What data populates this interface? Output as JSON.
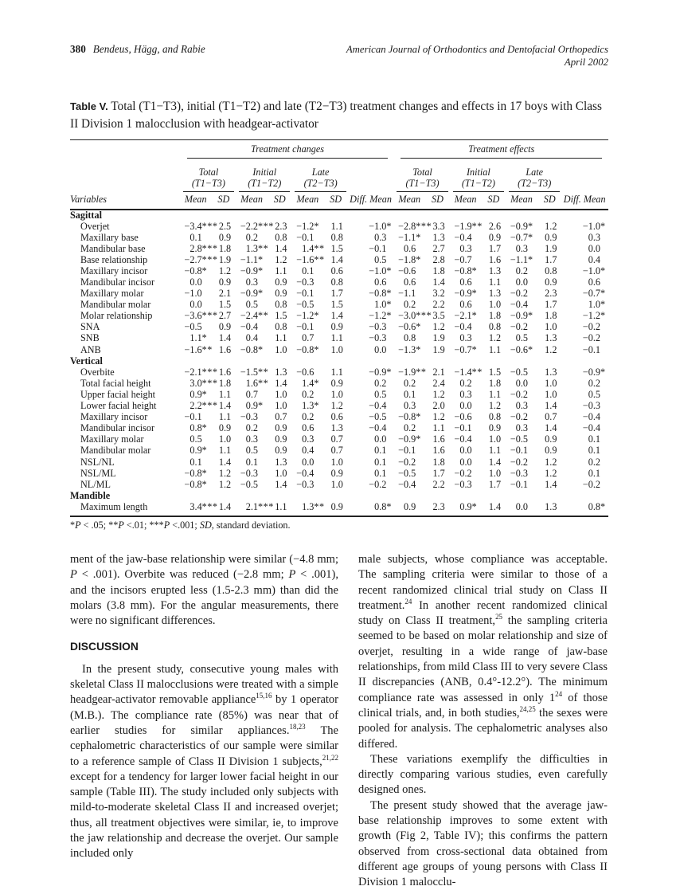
{
  "page": {
    "number": "380",
    "authors": "Bendeus, Hägg, and Rabie",
    "journal_line1": "American Journal of Orthodontics and Dentofacial Orthopedics",
    "journal_line2": "April 2002"
  },
  "table": {
    "label": "Table V.",
    "caption": "Total (T1−T3), initial (T1−T2) and late (T2−T3) treatment changes and effects in 17 boys with Class II Division 1 malocclusion with headgear-activator",
    "groups": {
      "changes": "Treatment changes",
      "effects": "Treatment effects"
    },
    "periods": [
      {
        "line1": "Total",
        "line2": "(T1−T3)"
      },
      {
        "line1": "Initial",
        "line2": "(T1−T2)"
      },
      {
        "line1": "Late",
        "line2": "(T2−T3)"
      }
    ],
    "col_headers": {
      "variables": "Variables",
      "mean": "Mean",
      "sd": "SD",
      "diff": "Diff. Mean"
    },
    "footnote": "*~{P} < .05; **~{P} <.01; ***~{P} <.001; ~{SD}, standard deviation.",
    "sections": [
      {
        "name": "Sagittal",
        "rows": [
          {
            "label": "Overjet",
            "values": [
              "−3.4***",
              "2.5",
              "−2.2***",
              "2.3",
              "−1.2*",
              "1.1",
              "−1.0*",
              "−2.8***",
              "3.3",
              "−1.9**",
              "2.6",
              "−0.9*",
              "1.2",
              "−1.0*"
            ]
          },
          {
            "label": "Maxillary base",
            "values": [
              "0.1",
              "0.9",
              "0.2",
              "0.8",
              "−0.1",
              "0.8",
              "0.3",
              "−1.1*",
              "1.3",
              "−0.4",
              "0.9",
              "−0.7*",
              "0.9",
              "0.3"
            ]
          },
          {
            "label": "Mandibular base",
            "values": [
              "2.8***",
              "1.8",
              "1.3**",
              "1.4",
              "1.4**",
              "1.5",
              "−0.1",
              "0.6",
              "2.7",
              "0.3",
              "1.7",
              "0.3",
              "1.9",
              "0.0"
            ]
          },
          {
            "label": "Base relationship",
            "values": [
              "−2.7***",
              "1.9",
              "−1.1*",
              "1.2",
              "−1.6**",
              "1.4",
              "0.5",
              "−1.8*",
              "2.8",
              "−0.7",
              "1.6",
              "−1.1*",
              "1.7",
              "0.4"
            ]
          },
          {
            "label": "Maxillary incisor",
            "values": [
              "−0.8*",
              "1.2",
              "−0.9*",
              "1.1",
              "0.1",
              "0.6",
              "−1.0*",
              "−0.6",
              "1.8",
              "−0.8*",
              "1.3",
              "0.2",
              "0.8",
              "−1.0*"
            ]
          },
          {
            "label": "Mandibular incisor",
            "values": [
              "0.0",
              "0.9",
              "0.3",
              "0.9",
              "−0.3",
              "0.8",
              "0.6",
              "0.6",
              "1.4",
              "0.6",
              "1.1",
              "0.0",
              "0.9",
              "0.6"
            ]
          },
          {
            "label": "Maxillary molar",
            "values": [
              "−1.0",
              "2.1",
              "−0.9*",
              "0.9",
              "−0.1",
              "1.7",
              "−0.8*",
              "−1.1",
              "3.2",
              "−0.9*",
              "1.3",
              "−0.2",
              "2.3",
              "−0.7*"
            ]
          },
          {
            "label": "Mandibular molar",
            "values": [
              "0.0",
              "1.5",
              "0.5",
              "0.8",
              "−0.5",
              "1.5",
              "1.0*",
              "0.2",
              "2.2",
              "0.6",
              "1.0",
              "−0.4",
              "1.7",
              "1.0*"
            ]
          },
          {
            "label": "Molar relationship",
            "values": [
              "−3.6***",
              "2.7",
              "−2.4**",
              "1.5",
              "−1.2*",
              "1.4",
              "−1.2*",
              "−3.0***",
              "3.5",
              "−2.1*",
              "1.8",
              "−0.9*",
              "1.8",
              "−1.2*"
            ]
          },
          {
            "label": "SNA",
            "values": [
              "−0.5",
              "0.9",
              "−0.4",
              "0.8",
              "−0.1",
              "0.9",
              "−0.3",
              "−0.6*",
              "1.2",
              "−0.4",
              "0.8",
              "−0.2",
              "1.0",
              "−0.2"
            ]
          },
          {
            "label": "SNB",
            "values": [
              "1.1*",
              "1.4",
              "0.4",
              "1.1",
              "0.7",
              "1.1",
              "−0.3",
              "0.8",
              "1.9",
              "0.3",
              "1.2",
              "0.5",
              "1.3",
              "−0.2"
            ]
          },
          {
            "label": "ANB",
            "values": [
              "−1.6**",
              "1.6",
              "−0.8*",
              "1.0",
              "−0.8*",
              "1.0",
              "0.0",
              "−1.3*",
              "1.9",
              "−0.7*",
              "1.1",
              "−0.6*",
              "1.2",
              "−0.1"
            ]
          }
        ]
      },
      {
        "name": "Vertical",
        "rows": [
          {
            "label": "Overbite",
            "values": [
              "−2.1***",
              "1.6",
              "−1.5**",
              "1.3",
              "−0.6",
              "1.1",
              "−0.9*",
              "−1.9**",
              "2.1",
              "−1.4**",
              "1.5",
              "−0.5",
              "1.3",
              "−0.9*"
            ]
          },
          {
            "label": "Total facial height",
            "values": [
              "3.0***",
              "1.8",
              "1.6**",
              "1.4",
              "1.4*",
              "0.9",
              "0.2",
              "0.2",
              "2.4",
              "0.2",
              "1.8",
              "0.0",
              "1.0",
              "0.2"
            ]
          },
          {
            "label": "Upper facial height",
            "values": [
              "0.9*",
              "1.1",
              "0.7",
              "1.0",
              "0.2",
              "1.0",
              "0.5",
              "0.1",
              "1.2",
              "0.3",
              "1.1",
              "−0.2",
              "1.0",
              "0.5"
            ]
          },
          {
            "label": "Lower facial height",
            "values": [
              "2.2***",
              "1.4",
              "0.9*",
              "1.0",
              "1.3*",
              "1.2",
              "−0.4",
              "0.3",
              "2.0",
              "0.0",
              "1.2",
              "0.3",
              "1.4",
              "−0.3"
            ]
          },
          {
            "label": "Maxillary incisor",
            "values": [
              "−0.1",
              "1.1",
              "−0.3",
              "0.7",
              "0.2",
              "0.6",
              "−0.5",
              "−0.8*",
              "1.2",
              "−0.6",
              "0.8",
              "−0.2",
              "0.7",
              "−0.4"
            ]
          },
          {
            "label": "Mandibular incisor",
            "values": [
              "0.8*",
              "0.9",
              "0.2",
              "0.9",
              "0.6",
              "1.3",
              "−0.4",
              "0.2",
              "1.1",
              "−0.1",
              "0.9",
              "0.3",
              "1.4",
              "−0.4"
            ]
          },
          {
            "label": "Maxillary molar",
            "values": [
              "0.5",
              "1.0",
              "0.3",
              "0.9",
              "0.3",
              "0.7",
              "0.0",
              "−0.9*",
              "1.6",
              "−0.4",
              "1.0",
              "−0.5",
              "0.9",
              "0.1"
            ]
          },
          {
            "label": "Mandibular molar",
            "values": [
              "0.9*",
              "1.1",
              "0.5",
              "0.9",
              "0.4",
              "0.7",
              "0.1",
              "−0.1",
              "1.6",
              "0.0",
              "1.1",
              "−0.1",
              "0.9",
              "0.1"
            ]
          },
          {
            "label": "NSL/NL",
            "values": [
              "0.1",
              "1.4",
              "0.1",
              "1.3",
              "0.0",
              "1.0",
              "0.1",
              "−0.2",
              "1.8",
              "0.0",
              "1.4",
              "−0.2",
              "1.2",
              "0.2"
            ]
          },
          {
            "label": "NSL/ML",
            "values": [
              "−0.8*",
              "1.2",
              "−0.3",
              "1.0",
              "−0.4",
              "0.9",
              "0.1",
              "−0.5",
              "1.7",
              "−0.2",
              "1.0",
              "−0.3",
              "1.2",
              "0.1"
            ]
          },
          {
            "label": "NL/ML",
            "values": [
              "−0.8*",
              "1.2",
              "−0.5",
              "1.4",
              "−0.3",
              "1.0",
              "−0.2",
              "−0.4",
              "2.2",
              "−0.3",
              "1.7",
              "−0.1",
              "1.4",
              "−0.2"
            ]
          }
        ]
      },
      {
        "name": "Mandible",
        "rows": [
          {
            "label": "Maximum length",
            "values": [
              "3.4***",
              "1.4",
              "2.1***",
              "1.1",
              "1.3**",
              "0.9",
              "0.8*",
              "0.9",
              "2.3",
              "0.9*",
              "1.4",
              "0.0",
              "1.3",
              "0.8*"
            ]
          }
        ]
      }
    ]
  },
  "article": {
    "left": [
      {
        "type": "p",
        "indent": false,
        "text": "ment of the jaw-base relationship were similar (−4.8 mm; ~{P} < .001). Overbite was reduced (−2.8 mm; ~{P} < .001), and the incisors erupted less (1.5-2.3 mm) than did the molars (3.8 mm). For the angular measurements, there were no significant differences."
      },
      {
        "type": "h",
        "text": "DISCUSSION"
      },
      {
        "type": "p",
        "indent": true,
        "text": "In the present study, consecutive young males with skeletal Class II malocclusions were treated with a simple headgear-activator removable appliance^{15,16} by 1 operator (M.B.). The compliance rate (85%) was near that of earlier studies for similar appliances.^{18,23} The cephalometric characteristics of our sample were similar to a reference sample of Class II Division 1 subjects,^{21,22} except for a tendency for larger lower facial height in our sample (Table III). The study included only subjects with mild-to-moderate skeletal Class II and increased overjet; thus, all treatment objectives were similar, ie, to improve the jaw relationship and decrease the overjet. Our sample included only"
      }
    ],
    "right": [
      {
        "type": "p",
        "indent": false,
        "text": "male subjects, whose compliance was acceptable. The sampling criteria were similar to those of a recent randomized clinical trial study on Class II treatment.^{24} In another recent randomized clinical study on Class II treatment,^{25} the sampling criteria seemed to be based on molar relationship and size of overjet, resulting in a wide range of jaw-base relationships, from mild Class III to very severe Class II discrepancies (ANB, 0.4°-12.2°). The minimum compliance rate was assessed in only 1^{24} of those clinical trials, and, in both studies,^{24,25} the sexes were pooled for analysis. The cephalometric analyses also differed."
      },
      {
        "type": "p",
        "indent": true,
        "text": "These variations exemplify the difficulties in directly comparing various studies, even carefully designed ones."
      },
      {
        "type": "p",
        "indent": true,
        "text": "The present study showed that the average jaw-base relationship improves to some extent with growth (Fig 2, Table IV); this confirms the pattern observed from cross-sectional data obtained from different age groups of young persons with Class II Division 1 malocclu-"
      }
    ]
  }
}
